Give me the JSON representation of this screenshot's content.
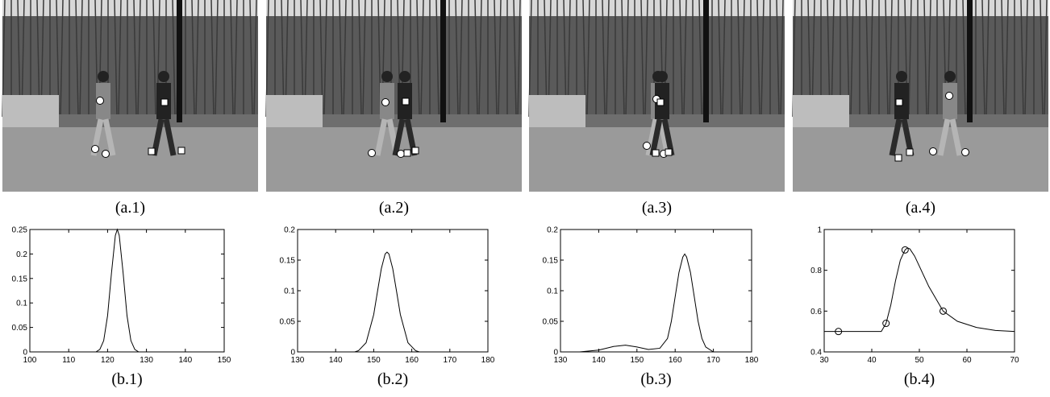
{
  "images": [
    {
      "caption": "(a.1)"
    },
    {
      "caption": "(a.2)"
    },
    {
      "caption": "(a.3)"
    },
    {
      "caption": "(a.4)"
    }
  ],
  "chart_data": [
    {
      "type": "line",
      "caption": "(b.1)",
      "color": "#000000",
      "x": [
        116,
        117,
        118,
        119,
        120,
        121,
        122,
        122.5,
        123,
        124,
        125,
        126,
        127,
        128,
        129
      ],
      "values": [
        0,
        0,
        0.005,
        0.023,
        0.074,
        0.161,
        0.238,
        0.25,
        0.238,
        0.161,
        0.074,
        0.023,
        0.005,
        0,
        0
      ],
      "xlim": [
        100,
        150
      ],
      "xticks": [
        100,
        110,
        120,
        130,
        140,
        150
      ],
      "ylim": [
        0,
        0.25
      ],
      "yticks": [
        0,
        0.05,
        0.1,
        0.15,
        0.2,
        0.25
      ]
    },
    {
      "type": "line",
      "caption": "(b.2)",
      "color": "#000000",
      "x": [
        145,
        146,
        148,
        150,
        151,
        152,
        153,
        153.5,
        154,
        155,
        156,
        157,
        159,
        161,
        162
      ],
      "values": [
        0,
        0.002,
        0.015,
        0.061,
        0.099,
        0.136,
        0.16,
        0.163,
        0.16,
        0.136,
        0.099,
        0.061,
        0.015,
        0.002,
        0
      ],
      "xlim": [
        130,
        180
      ],
      "xticks": [
        130,
        140,
        150,
        160,
        170,
        180
      ],
      "ylim": [
        0,
        0.2
      ],
      "yticks": [
        0,
        0.05,
        0.1,
        0.15,
        0.2
      ]
    },
    {
      "type": "line",
      "caption": "(b.3)",
      "color": "#000000",
      "x": [
        135,
        140,
        144,
        147,
        150,
        153,
        156,
        158,
        159,
        160,
        161,
        162,
        162.5,
        163,
        164,
        165,
        166,
        167,
        168,
        170
      ],
      "values": [
        0,
        0.003,
        0.009,
        0.011,
        0.008,
        0.004,
        0.006,
        0.022,
        0.05,
        0.09,
        0.13,
        0.155,
        0.16,
        0.155,
        0.13,
        0.09,
        0.05,
        0.022,
        0.008,
        0
      ],
      "xlim": [
        130,
        180
      ],
      "xticks": [
        130,
        140,
        150,
        160,
        170,
        180
      ],
      "ylim": [
        0,
        0.2
      ],
      "yticks": [
        0,
        0.05,
        0.1,
        0.15,
        0.2
      ]
    },
    {
      "type": "line",
      "caption": "(b.4)",
      "color": "#000000",
      "x": [
        30,
        42,
        43,
        44,
        45,
        46,
        47,
        47.5,
        48,
        49,
        50,
        52,
        55,
        58,
        62,
        66,
        70
      ],
      "values": [
        0.5,
        0.5,
        0.54,
        0.63,
        0.75,
        0.85,
        0.9,
        0.91,
        0.905,
        0.87,
        0.82,
        0.72,
        0.6,
        0.55,
        0.52,
        0.505,
        0.5
      ],
      "markers": {
        "x": [
          33,
          43,
          47,
          55
        ],
        "values": [
          0.5,
          0.54,
          0.9,
          0.6
        ]
      },
      "xlim": [
        30,
        70
      ],
      "xticks": [
        30,
        40,
        50,
        60,
        70
      ],
      "ylim": [
        0.4,
        1
      ],
      "yticks": [
        0.4,
        0.6,
        0.8,
        1
      ]
    }
  ]
}
